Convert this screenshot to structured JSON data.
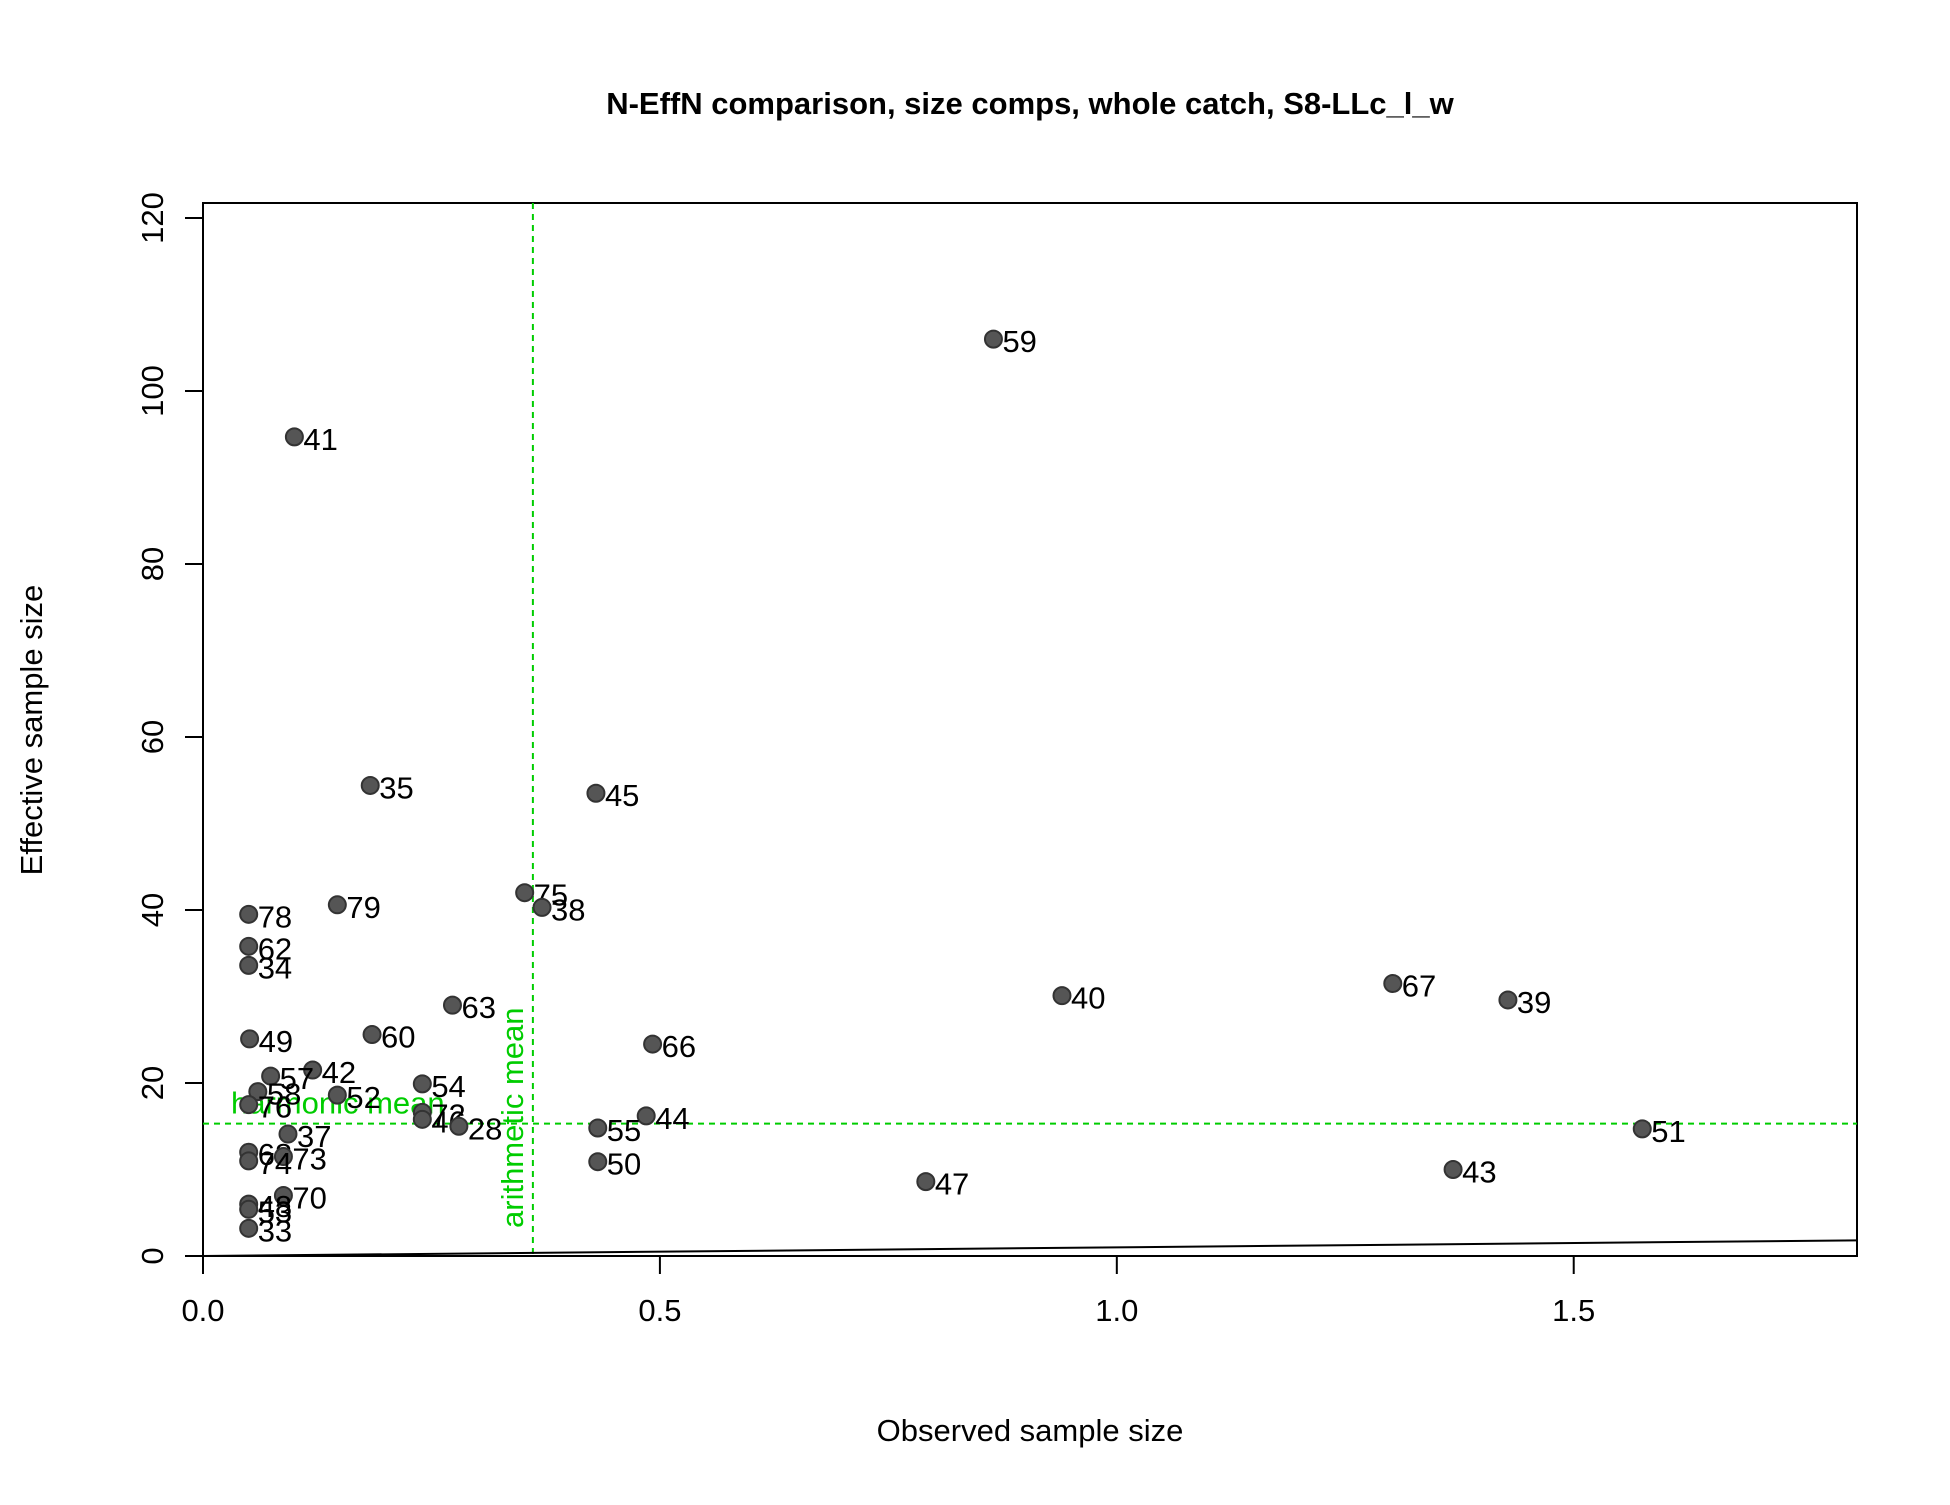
{
  "chart_data": {
    "type": "scatter",
    "title": "N-EffN comparison, size comps, whole catch, S8-LLc_l_w",
    "xlabel": "Observed sample size",
    "ylabel": "Effective sample size",
    "xlim": [
      0,
      1.81
    ],
    "ylim": [
      0,
      120
    ],
    "x_ticks": [
      0,
      0.5,
      1.0,
      1.5
    ],
    "x_tick_labels": [
      "0.0",
      "0.5",
      "1.0",
      "1.5"
    ],
    "y_ticks": [
      0,
      20,
      40,
      60,
      80,
      100,
      120
    ],
    "y_tick_labels": [
      "0",
      "20",
      "40",
      "60",
      "80",
      "100",
      "120"
    ],
    "grid": false,
    "colors": {
      "point": "#555555",
      "point_edge": "#333333",
      "reference": "#00cc00",
      "axis": "#000000"
    },
    "points": [
      {
        "label": "59",
        "x": 0.865,
        "y": 106.0
      },
      {
        "label": "41",
        "x": 0.1,
        "y": 94.7
      },
      {
        "label": "35",
        "x": 0.183,
        "y": 54.4
      },
      {
        "label": "45",
        "x": 0.43,
        "y": 53.5
      },
      {
        "label": "75",
        "x": 0.352,
        "y": 42.0
      },
      {
        "label": "38",
        "x": 0.371,
        "y": 40.3
      },
      {
        "label": "79",
        "x": 0.147,
        "y": 40.6
      },
      {
        "label": "78",
        "x": 0.05,
        "y": 39.5
      },
      {
        "label": "62",
        "x": 0.05,
        "y": 35.8
      },
      {
        "label": "34",
        "x": 0.05,
        "y": 33.6
      },
      {
        "label": "67",
        "x": 1.302,
        "y": 31.5
      },
      {
        "label": "40",
        "x": 0.94,
        "y": 30.1
      },
      {
        "label": "39",
        "x": 1.428,
        "y": 29.6
      },
      {
        "label": "63",
        "x": 0.273,
        "y": 29.0
      },
      {
        "label": "60",
        "x": 0.185,
        "y": 25.6
      },
      {
        "label": "49",
        "x": 0.051,
        "y": 25.1
      },
      {
        "label": "66",
        "x": 0.492,
        "y": 24.5
      },
      {
        "label": "42",
        "x": 0.12,
        "y": 21.5
      },
      {
        "label": "57",
        "x": 0.074,
        "y": 20.8
      },
      {
        "label": "54",
        "x": 0.24,
        "y": 19.9
      },
      {
        "label": "58",
        "x": 0.06,
        "y": 19.0
      },
      {
        "label": "52",
        "x": 0.147,
        "y": 18.6
      },
      {
        "label": "76",
        "x": 0.05,
        "y": 17.5
      },
      {
        "label": "44",
        "x": 0.485,
        "y": 16.2
      },
      {
        "label": "72",
        "x": 0.24,
        "y": 16.6
      },
      {
        "label": "46",
        "x": 0.24,
        "y": 15.8
      },
      {
        "label": "28",
        "x": 0.28,
        "y": 15.0
      },
      {
        "label": "55",
        "x": 0.432,
        "y": 14.8
      },
      {
        "label": "51",
        "x": 1.575,
        "y": 14.7
      },
      {
        "label": "37",
        "x": 0.093,
        "y": 14.1
      },
      {
        "label": "68",
        "x": 0.05,
        "y": 12.0
      },
      {
        "label": "73",
        "x": 0.088,
        "y": 11.5
      },
      {
        "label": "74",
        "x": 0.05,
        "y": 11.0
      },
      {
        "label": "50",
        "x": 0.432,
        "y": 10.9
      },
      {
        "label": "43",
        "x": 1.368,
        "y": 10.0
      },
      {
        "label": "47",
        "x": 0.791,
        "y": 8.6
      },
      {
        "label": "70",
        "x": 0.088,
        "y": 7.0
      },
      {
        "label": "48",
        "x": 0.05,
        "y": 6.0
      },
      {
        "label": "53",
        "x": 0.05,
        "y": 5.4
      },
      {
        "label": "33",
        "x": 0.05,
        "y": 3.2
      }
    ],
    "reference_lines": [
      {
        "orientation": "vertical",
        "x": 0.361,
        "label": "arithmetic mean",
        "style": "dashed"
      },
      {
        "orientation": "horizontal",
        "y": 15.3,
        "label": "harmonic mean",
        "style": "dashed"
      },
      {
        "orientation": "diagonal",
        "slope": 1,
        "intercept": 0,
        "style": "solid"
      }
    ]
  }
}
